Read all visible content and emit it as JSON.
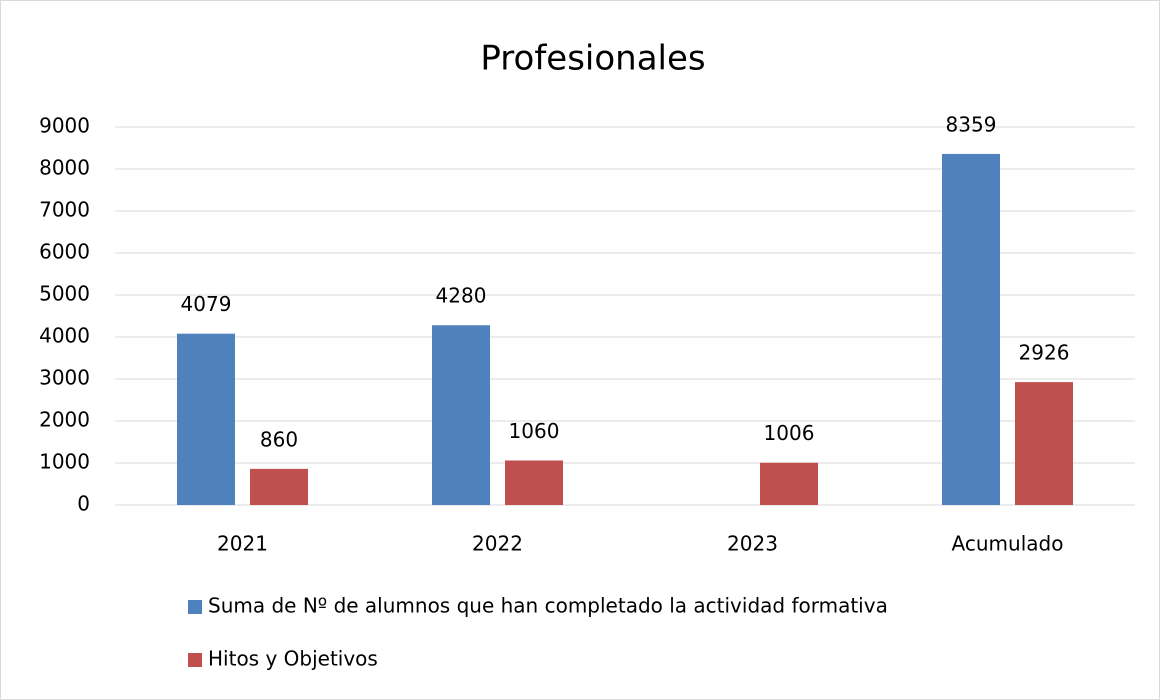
{
  "chart_data": {
    "type": "bar",
    "title": "Profesionales",
    "categories": [
      "2021",
      "2022",
      "2023",
      "Acumulado"
    ],
    "series": [
      {
        "name": "Suma de Nº de alumnos que han completado la actividad formativa",
        "color": "#4f81bd",
        "values": [
          4079,
          4280,
          null,
          8359
        ]
      },
      {
        "name": "Hitos y Objetivos",
        "color": "#c0504d",
        "values": [
          860,
          1060,
          1006,
          2926
        ]
      }
    ],
    "ylim": [
      0,
      9000
    ],
    "yticks": [
      0,
      1000,
      2000,
      3000,
      4000,
      5000,
      6000,
      7000,
      8000,
      9000
    ],
    "grid": true,
    "legend": "bottom"
  }
}
